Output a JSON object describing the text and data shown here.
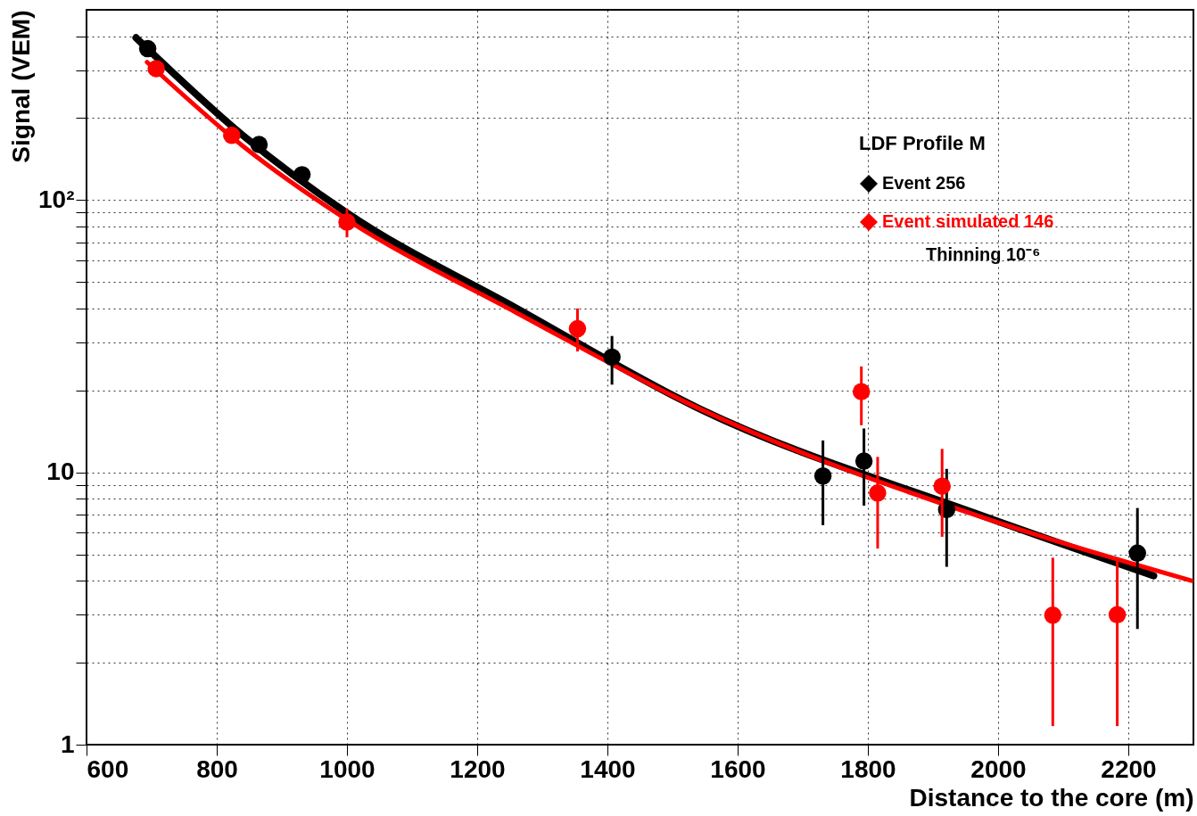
{
  "chart_data": {
    "type": "scatter",
    "xlabel": "Distance to the core (m)",
    "ylabel": "Signal (VEM)",
    "legend_title": "LDF Profile M",
    "annotations": [
      "Thinning 10⁻⁶"
    ],
    "xlim": [
      600,
      2300
    ],
    "xticks": [
      600,
      800,
      1000,
      1200,
      1400,
      1600,
      1800,
      2000,
      2200
    ],
    "ylim": [
      1,
      500
    ],
    "log": true,
    "yticks": [
      1,
      {
        "value": 2,
        "label": null
      },
      {
        "value": 3,
        "label": null
      },
      {
        "value": 4,
        "label": null
      },
      {
        "value": 5,
        "label": null
      },
      {
        "value": 6,
        "label": null
      },
      {
        "value": 7,
        "label": null
      },
      {
        "value": 8,
        "label": null
      },
      {
        "value": 9,
        "label": null
      },
      10,
      {
        "value": 20,
        "label": null
      },
      {
        "value": 30,
        "label": null
      },
      {
        "value": 40,
        "label": null
      },
      {
        "value": 50,
        "label": null
      },
      {
        "value": 60,
        "label": null
      },
      {
        "value": 70,
        "label": null
      },
      {
        "value": 80,
        "label": null
      },
      {
        "value": 90,
        "label": null
      },
      {
        "value": 100,
        "label": "10²"
      },
      {
        "value": 200,
        "label": null
      },
      {
        "value": 300,
        "label": null
      },
      {
        "value": 400,
        "label": null
      }
    ],
    "grid": true,
    "legend": "top right",
    "series": [
      {
        "type": "line",
        "marker": "none",
        "color": "#000000",
        "x": [
          676,
          840,
          999,
          1261,
          1542,
          1963,
          2239
        ],
        "values": [
          395,
          173,
          90,
          40,
          17.1,
          7.1,
          4.17
        ]
      },
      {
        "type": "line",
        "marker": "none",
        "color": "#ff0000",
        "x": [
          693,
          840,
          999,
          1261,
          1542,
          1963,
          2297
        ],
        "values": [
          321,
          158,
          85,
          38.5,
          17.1,
          7.0,
          4.0
        ]
      },
      {
        "name": "Event 256",
        "marker": "circle",
        "color": "#000000",
        "x": [
          694,
          865,
          931,
          1407,
          1731,
          1794,
          1921,
          2214
        ],
        "values": [
          360,
          160,
          124,
          26.5,
          9.7,
          11,
          7.3,
          5.05
        ],
        "errors": [
          null,
          null,
          null,
          [
            21,
            31.7
          ],
          [
            6.4,
            13.1
          ],
          [
            7.55,
            14.5
          ],
          [
            4.5,
            10.3
          ],
          [
            2.66,
            7.4
          ]
        ]
      },
      {
        "name": "Event simulated    146",
        "marker": "circle",
        "color": "#ff0000",
        "x": [
          707,
          823,
          1000,
          1354,
          1790,
          1815,
          1914,
          2084,
          2183
        ],
        "values": [
          304,
          173,
          83,
          33.7,
          19.8,
          8.4,
          8.9,
          2.99,
          3.0
        ],
        "errors": [
          null,
          null,
          [
            73,
            93
          ],
          [
            27.8,
            40
          ],
          [
            14.9,
            24.5
          ],
          [
            5.25,
            11.4
          ],
          [
            5.8,
            12.2
          ],
          [
            1.17,
            4.86
          ],
          [
            1.17,
            4.86
          ]
        ]
      }
    ]
  }
}
